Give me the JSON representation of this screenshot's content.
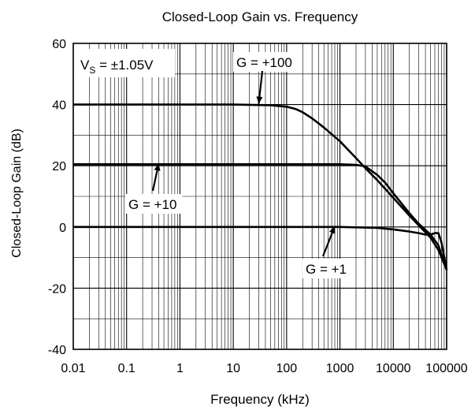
{
  "chart_data": {
    "type": "line",
    "title": "Closed-Loop Gain vs. Frequency",
    "xlabel": "Frequency (kHz)",
    "ylabel": "Closed-Loop Gain (dB)",
    "x_scale": "log",
    "xlim": [
      0.01,
      100000
    ],
    "ylim": [
      -40,
      60
    ],
    "x_ticks": [
      "0.01",
      "0.1",
      "1",
      "10",
      "100",
      "1000",
      "10000",
      "100000"
    ],
    "y_ticks": [
      "-40",
      "-20",
      "0",
      "20",
      "40",
      "60"
    ],
    "grid": true,
    "condition_label": {
      "prefix": "V",
      "subscript": "S",
      "suffix": " = ±1.05V"
    },
    "series": [
      {
        "name": "G = +100",
        "x": [
          0.01,
          10,
          50,
          100,
          150,
          200,
          300,
          500,
          700,
          1000,
          2000,
          3000,
          5000,
          10000,
          20000,
          30000,
          50000,
          70000,
          100000
        ],
        "y": [
          40,
          40,
          39.8,
          39.3,
          38.5,
          37.5,
          35.5,
          32.5,
          30.3,
          28,
          22.5,
          19.2,
          15.3,
          9.5,
          3.7,
          0.5,
          -3.5,
          -7.5,
          -14
        ]
      },
      {
        "name": "G = +10",
        "x": [
          0.01,
          100,
          1000,
          2000,
          3000,
          5000,
          7000,
          10000,
          20000,
          30000,
          50000,
          70000,
          100000
        ],
        "y": [
          20.5,
          20.5,
          20.5,
          20.3,
          19.8,
          17,
          14.5,
          11,
          4.5,
          1,
          -2.5,
          -6,
          -14
        ]
      },
      {
        "name": "G = +1",
        "x": [
          0.01,
          1000,
          5000,
          10000,
          20000,
          30000,
          40000,
          50000,
          60000,
          70000,
          80000,
          100000
        ],
        "y": [
          0,
          0,
          -0.3,
          -0.8,
          -1.5,
          -2,
          -2.5,
          -2.5,
          -2,
          -2,
          -5,
          -14
        ]
      }
    ],
    "annotations": [
      {
        "label": "G = +100",
        "points_to": {
          "x": 30,
          "y": 40
        }
      },
      {
        "label": "G = +10",
        "points_to": {
          "x": 0.4,
          "y": 20.5
        }
      },
      {
        "label": "G = +1",
        "points_to": {
          "x": 800,
          "y": 0
        }
      }
    ]
  }
}
